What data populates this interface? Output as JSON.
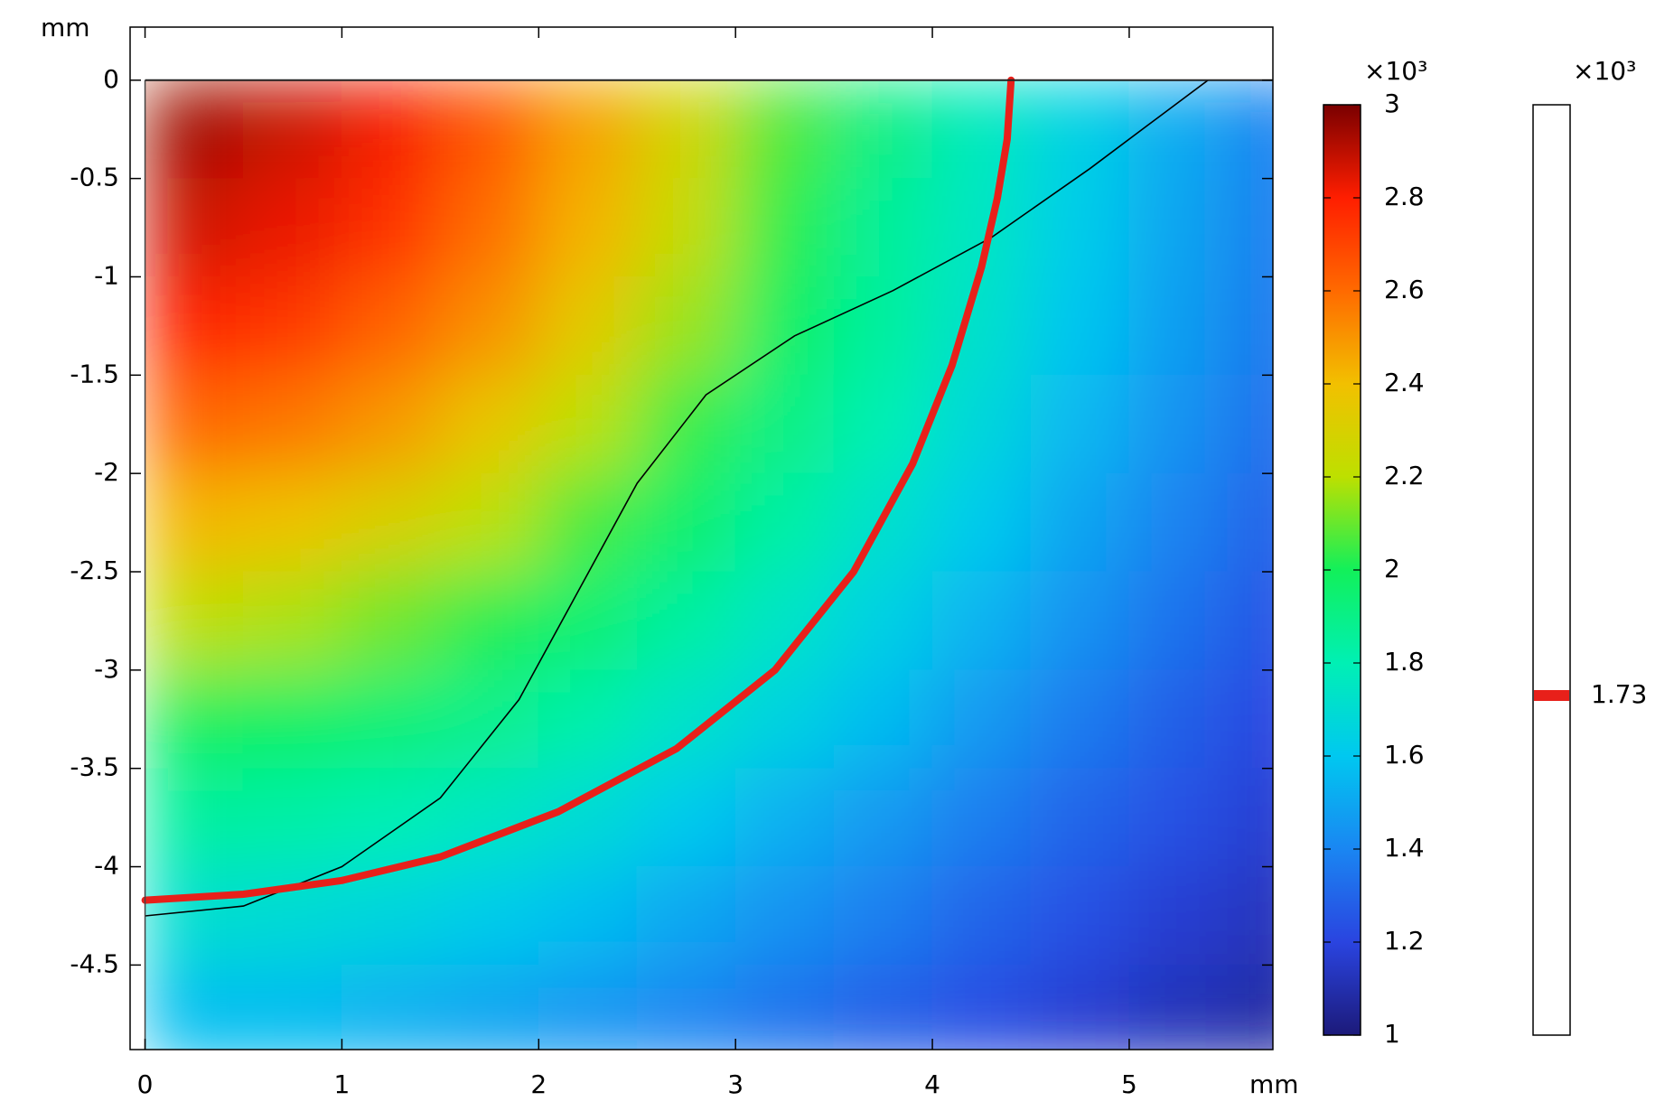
{
  "chart_data": {
    "type": "heatmap",
    "x_label": "mm",
    "y_label": "mm",
    "xlim": [
      -0.076,
      5.73
    ],
    "ylim": [
      -4.93,
      0.27
    ],
    "xticks": [
      0,
      1,
      2,
      3,
      4,
      5
    ],
    "yticks": [
      0,
      -0.5,
      -1,
      -1.5,
      -2,
      -2.5,
      -3,
      -3.5,
      -4,
      -4.5
    ],
    "x": [
      0.25,
      0.75,
      1.25,
      1.75,
      2.25,
      2.75,
      3.25,
      3.75,
      4.25,
      4.75,
      5.25,
      5.75
    ],
    "y": [
      -0.25,
      -0.75,
      -1.25,
      -1.75,
      -2.25,
      -2.75,
      -3.25,
      -3.75,
      -4.25,
      -4.75
    ],
    "z": [
      [
        2.94,
        2.88,
        2.81,
        2.65,
        2.47,
        2.27,
        2.07,
        1.91,
        1.77,
        1.64,
        1.51,
        1.39
      ],
      [
        2.87,
        2.83,
        2.75,
        2.59,
        2.43,
        2.23,
        2.03,
        1.86,
        1.75,
        1.62,
        1.49,
        1.38
      ],
      [
        2.79,
        2.73,
        2.62,
        2.51,
        2.34,
        2.16,
        1.98,
        1.85,
        1.72,
        1.59,
        1.47,
        1.36
      ],
      [
        2.61,
        2.57,
        2.49,
        2.36,
        2.2,
        2.04,
        1.91,
        1.8,
        1.67,
        1.55,
        1.44,
        1.33
      ],
      [
        2.42,
        2.38,
        2.3,
        2.2,
        2.06,
        1.96,
        1.83,
        1.72,
        1.61,
        1.49,
        1.39,
        1.29
      ],
      [
        2.21,
        2.18,
        2.11,
        2.02,
        1.95,
        1.84,
        1.74,
        1.64,
        1.54,
        1.44,
        1.34,
        1.25
      ],
      [
        2.0,
        1.98,
        1.94,
        1.89,
        1.82,
        1.73,
        1.65,
        1.56,
        1.46,
        1.37,
        1.28,
        1.21
      ],
      [
        1.85,
        1.83,
        1.8,
        1.75,
        1.69,
        1.61,
        1.53,
        1.46,
        1.38,
        1.3,
        1.24,
        1.17
      ],
      [
        1.71,
        1.69,
        1.66,
        1.62,
        1.57,
        1.5,
        1.44,
        1.38,
        1.3,
        1.24,
        1.17,
        1.13
      ],
      [
        1.57,
        1.56,
        1.53,
        1.49,
        1.45,
        1.4,
        1.34,
        1.28,
        1.23,
        1.17,
        1.12,
        1.08
      ]
    ],
    "colorbar": {
      "label": "×10³",
      "lim": [
        1,
        3
      ],
      "ticks": [
        1,
        1.2,
        1.4,
        1.6,
        1.8,
        2,
        2.2,
        2.4,
        2.6,
        2.8,
        3
      ],
      "colors": [
        "#1c1a7a",
        "#2a44e0",
        "#1a86f2",
        "#00c8f0",
        "#00f0b4",
        "#12f05a",
        "#bde000",
        "#f2c000",
        "#ff6a00",
        "#ff1e00",
        "#7a0000"
      ]
    },
    "contour": {
      "label": "×10³",
      "level": 1.73,
      "color": "#e8201a",
      "x": [
        4.4,
        4.38,
        4.33,
        4.25,
        4.1,
        3.9,
        3.6,
        3.2,
        2.7,
        2.1,
        1.5,
        1.0,
        0.5,
        0
      ],
      "y": [
        0,
        -0.3,
        -0.6,
        -0.95,
        -1.45,
        -1.95,
        -2.5,
        -3.0,
        -3.4,
        -3.72,
        -3.95,
        -4.07,
        -4.14,
        -4.17
      ]
    },
    "line": {
      "color": "#000000",
      "x": [
        0,
        0.5,
        1.0,
        1.5,
        1.9,
        2.2,
        2.5,
        2.85,
        3.3,
        3.8,
        4.3,
        4.8,
        5.4
      ],
      "y": [
        -4.25,
        -4.2,
        -4.0,
        -3.65,
        -3.15,
        -2.6,
        -2.05,
        -1.6,
        -1.3,
        -1.07,
        -0.8,
        -0.45,
        0
      ]
    }
  }
}
